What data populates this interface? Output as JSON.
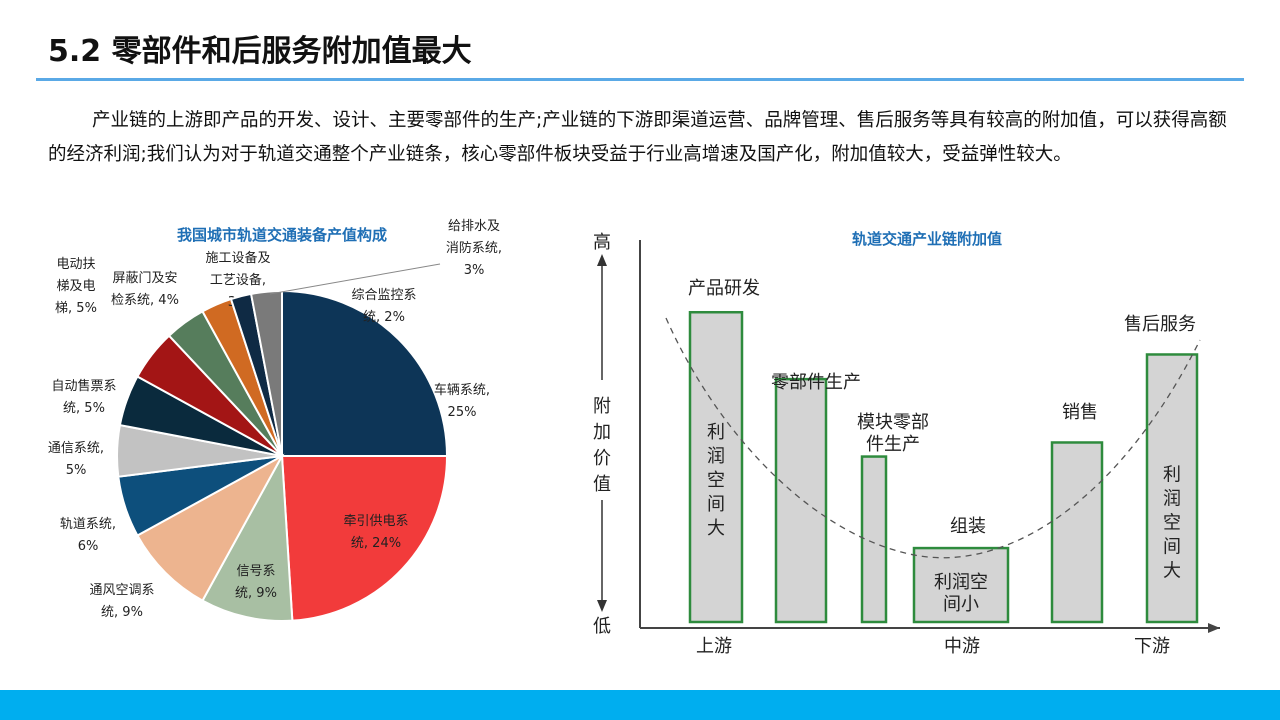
{
  "page": {
    "title": "5.2 零部件和后服务附加值最大",
    "paragraph": "产业链的上游即产品的开发、设计、主要零部件的生产;产业链的下游即渠道运营、品牌管理、售后服务等具有较高的附加值，可以获得高额的经济利润;我们认为对于轨道交通整个产业链条，核心零部件板块受益于行业高增速及国产化，附加值较大，受益弹性较大。"
  },
  "chart_data": [
    {
      "type": "pie",
      "title": "我国城市轨道交通装备产值构成",
      "slices": [
        {
          "lines": [
            "车辆系统,",
            "25%"
          ],
          "value": 25,
          "color": "#0d3557"
        },
        {
          "lines": [
            "牵引供电系",
            "统, 24%"
          ],
          "value": 24,
          "color": "#f23b3b"
        },
        {
          "lines": [
            "信号系",
            "统, 9%"
          ],
          "value": 9,
          "color": "#a8bfa3"
        },
        {
          "lines": [
            "通风空调系",
            "统, 9%"
          ],
          "value": 9,
          "color": "#edb48f"
        },
        {
          "lines": [
            "轨道系统,",
            "6%"
          ],
          "value": 6,
          "color": "#0d4f7c"
        },
        {
          "lines": [
            "通信系统,",
            "5%"
          ],
          "value": 5,
          "color": "#c2c2c2"
        },
        {
          "lines": [
            "自动售票系",
            "统, 5%"
          ],
          "value": 5,
          "color": "#0a2a3d"
        },
        {
          "lines": [
            "电动扶",
            "梯及电",
            "梯, 5%"
          ],
          "value": 5,
          "color": "#a31515"
        },
        {
          "lines": [
            "屏蔽门及安",
            "检系统, 4%"
          ],
          "value": 4,
          "color": "#567d5c"
        },
        {
          "lines": [
            "施工设备及",
            "工艺设备,",
            "3%"
          ],
          "value": 3,
          "color": "#d06a22"
        },
        {
          "lines": [
            "综合监控系",
            "统, 2%"
          ],
          "value": 2,
          "color": "#0f2a44"
        },
        {
          "lines": [
            "给排水及",
            "消防系统,",
            "3%"
          ],
          "value": 3,
          "color": "#7a7a7a"
        }
      ]
    },
    {
      "type": "bar",
      "title": "轨道交通产业链附加值",
      "ylabel_high": "高",
      "ylabel_low": "低",
      "ylabel": [
        "附",
        "加",
        "价",
        "值"
      ],
      "x_labels": [
        "上游",
        "中游",
        "下游"
      ],
      "bars": [
        {
          "label": "产品研发",
          "value": 0.88,
          "inner": [
            "利",
            "润",
            "空",
            "间",
            "大"
          ]
        },
        {
          "label": "零部件生产",
          "value": 0.69,
          "inner": []
        },
        {
          "label": "模块零部件生产",
          "label_lines": [
            "模块零部",
            "件生产"
          ],
          "value": 0.47,
          "inner": []
        },
        {
          "label": "组装",
          "value": 0.21,
          "inner": [
            "利润空",
            "间小"
          ]
        },
        {
          "label": "销售",
          "value": 0.51,
          "inner": []
        },
        {
          "label": "售后服务",
          "value": 0.76,
          "inner": [
            "利",
            "润",
            "空",
            "间",
            "大"
          ]
        }
      ],
      "curve": "dashed-u"
    }
  ]
}
